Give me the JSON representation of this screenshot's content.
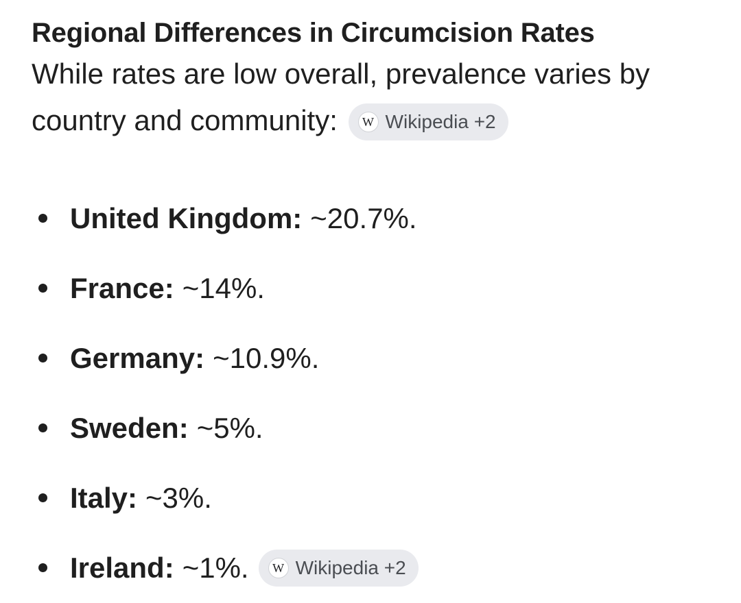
{
  "section": {
    "heading": "Regional Differences in Circumcision Rates",
    "intro": "While rates are low overall, prevalence varies by country and community:",
    "intro_chip": {
      "icon": "wikipedia-icon",
      "icon_glyph": "W",
      "label": "Wikipedia +2"
    }
  },
  "rates": [
    {
      "country": "United Kingdom:",
      "value": "~20.7%."
    },
    {
      "country": "France:",
      "value": "~14%."
    },
    {
      "country": "Germany:",
      "value": "~10.9%."
    },
    {
      "country": "Sweden:",
      "value": "~5%."
    },
    {
      "country": "Italy:",
      "value": "~3%."
    },
    {
      "country": "Ireland:",
      "value": "~1%."
    }
  ],
  "list_chip": {
    "icon": "wikipedia-icon",
    "icon_glyph": "W",
    "label": "Wikipedia +2"
  }
}
